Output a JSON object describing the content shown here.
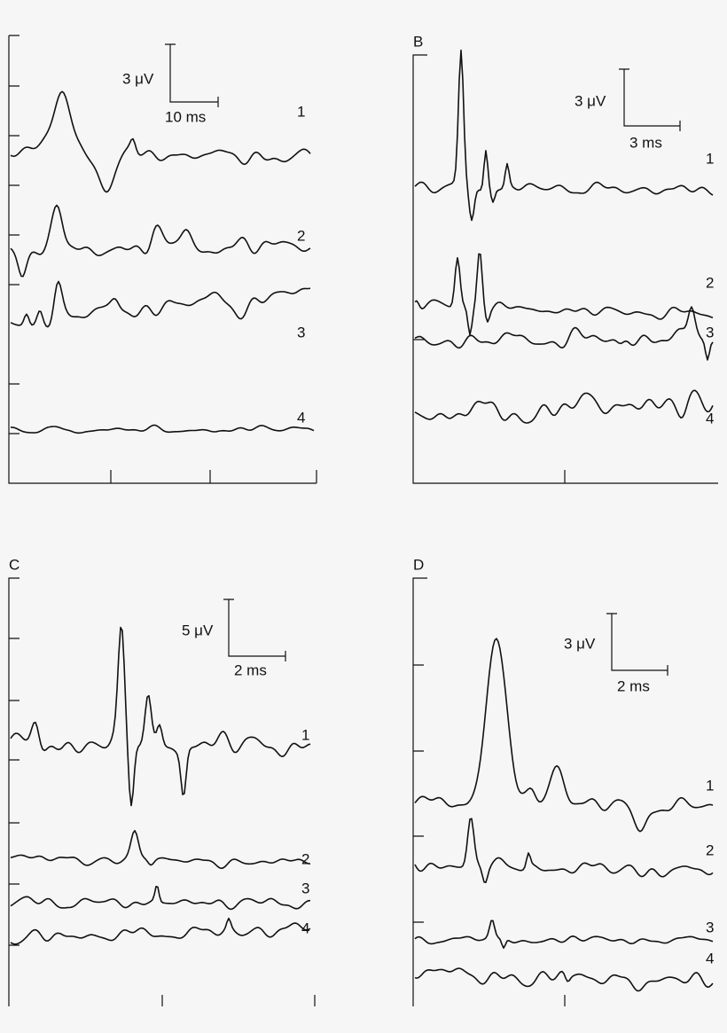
{
  "panels": [
    {
      "scale_y": "3 μV",
      "scale_x": "10 ms",
      "traces": [
        "1",
        "2",
        "3",
        "4"
      ]
    },
    {
      "label": "B",
      "scale_y": "3 μV",
      "scale_x": "3 ms",
      "traces": [
        "1",
        "2",
        "3",
        "4"
      ]
    },
    {
      "label": "C",
      "scale_y": "5 μV",
      "scale_x": "2 ms",
      "traces": [
        "1",
        "2",
        "3",
        "4"
      ]
    },
    {
      "label": "D",
      "scale_y": "3 μV",
      "scale_x": "2 ms",
      "traces": [
        "1",
        "2",
        "3",
        "4"
      ]
    }
  ]
}
